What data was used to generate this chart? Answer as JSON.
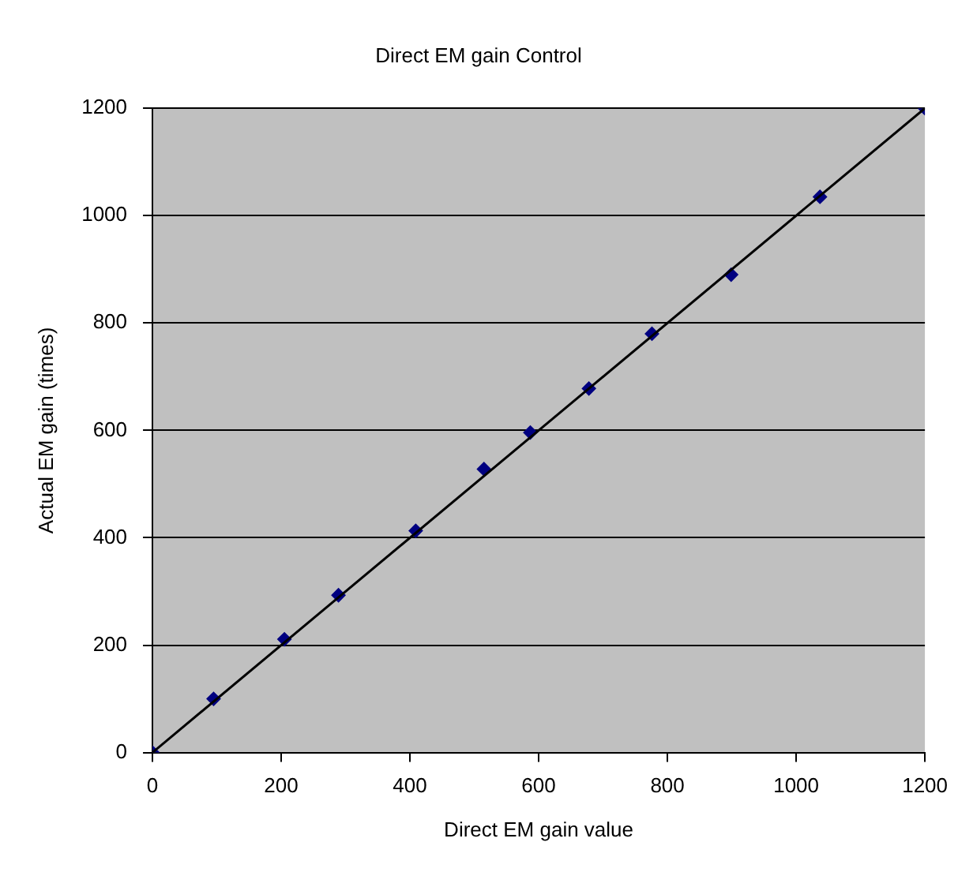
{
  "chart_data": {
    "type": "scatter",
    "title": "Direct EM gain Control",
    "xlabel": "Direct EM gain value",
    "ylabel": "Actual EM gain (times)",
    "series": [
      {
        "color": "#000080",
        "marker": "diamond",
        "x": [
          0,
          95,
          205,
          289,
          409,
          515,
          587,
          678,
          776,
          899,
          1037,
          1200
        ],
        "values": [
          0,
          100,
          211,
          293,
          413,
          528,
          596,
          678,
          780,
          890,
          1035,
          1200
        ]
      },
      {
        "type": "line",
        "color": "#000000",
        "marker": "none",
        "x": [
          0,
          1200
        ],
        "values": [
          0,
          1200
        ]
      }
    ],
    "xlim": [
      0,
      1200
    ],
    "xticks": [
      0,
      200,
      400,
      600,
      800,
      1000,
      1200
    ],
    "ylim": [
      0,
      1200
    ],
    "yticks": [
      0,
      200,
      400,
      600,
      800,
      1000,
      1200
    ],
    "grid": "y",
    "legend": false
  }
}
